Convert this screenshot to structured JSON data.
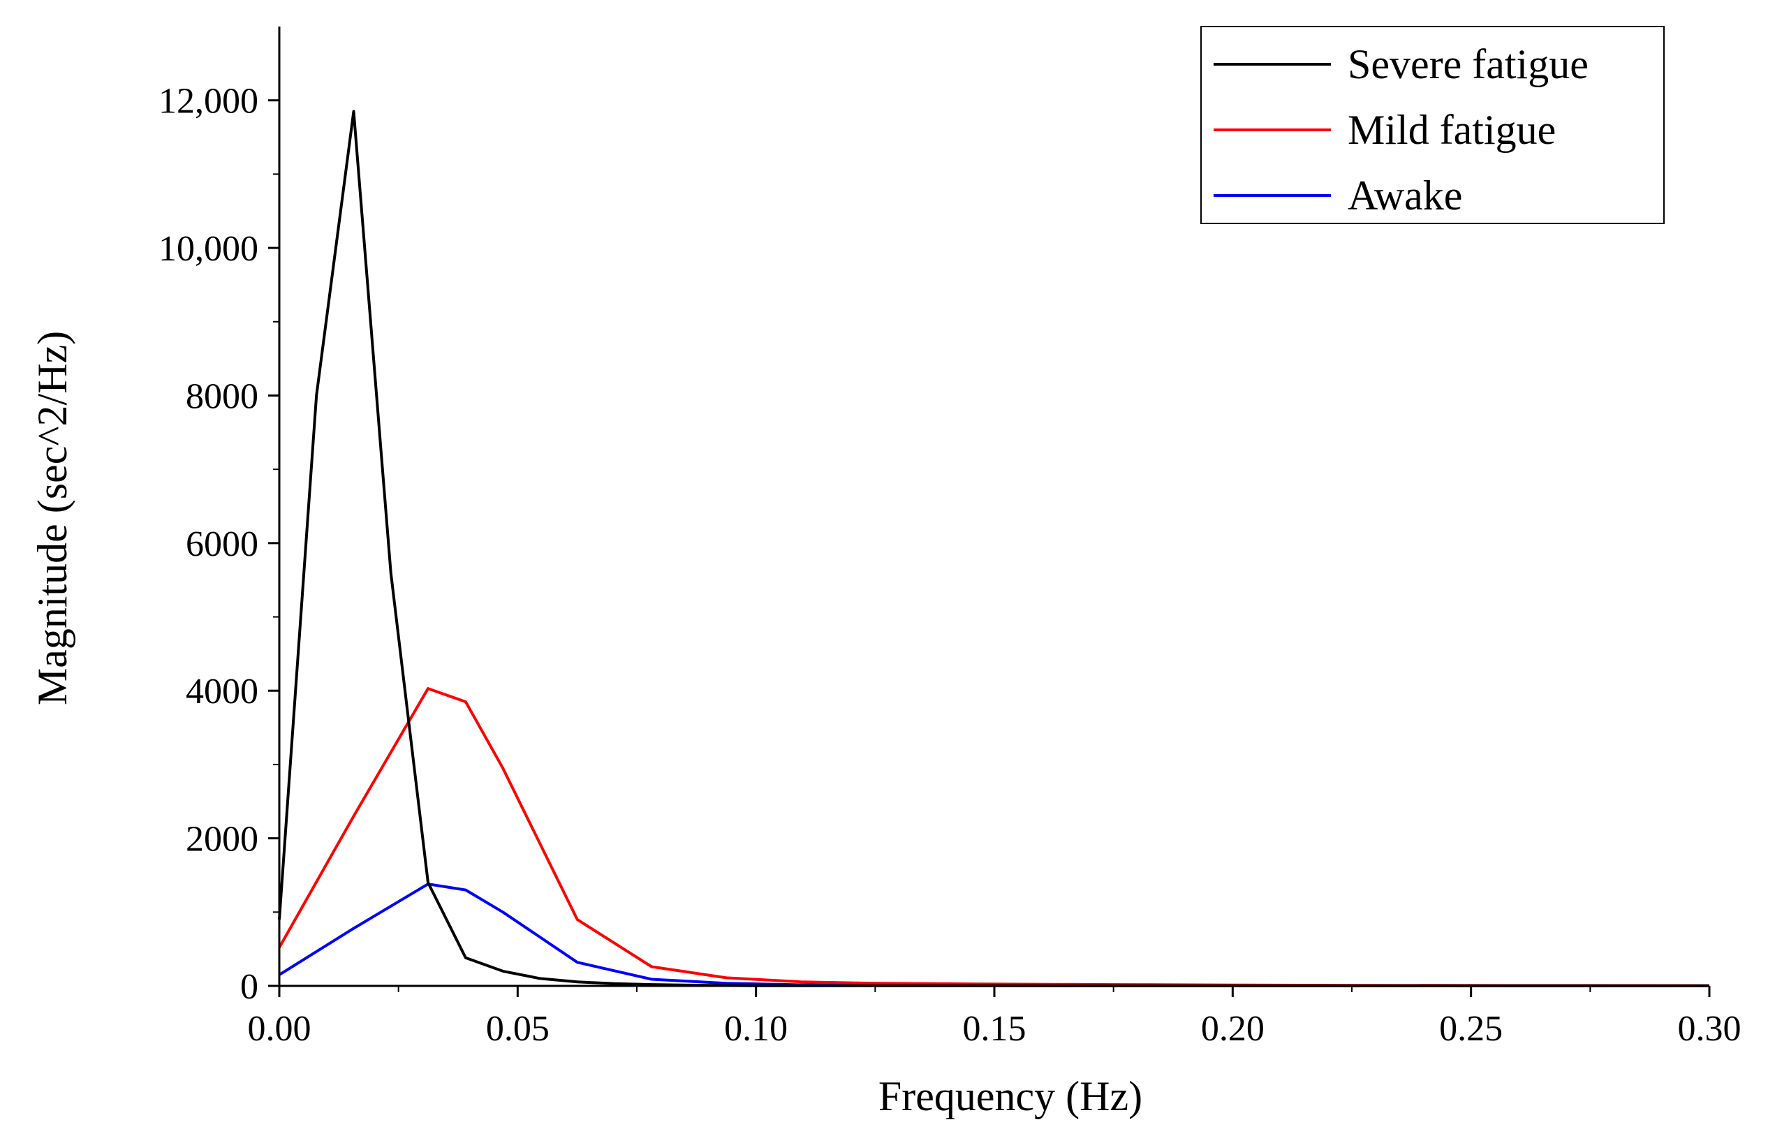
{
  "chart_data": {
    "type": "line",
    "title": "",
    "xlabel": "Frequency (Hz)",
    "ylabel": "Magnitude (sec^2/Hz)",
    "xlim": [
      0,
      0.3
    ],
    "ylim": [
      0,
      13000
    ],
    "x_ticks": [
      0.0,
      0.05,
      0.1,
      0.15,
      0.2,
      0.25,
      0.3
    ],
    "x_tick_labels": [
      "0.00",
      "0.05",
      "0.10",
      "0.15",
      "0.20",
      "0.25",
      "0.30"
    ],
    "y_ticks": [
      0,
      2000,
      4000,
      6000,
      8000,
      10000,
      12000
    ],
    "y_tick_labels": [
      "0",
      "2000",
      "4000",
      "6000",
      "8000",
      "10,000",
      "12,000"
    ],
    "grid": false,
    "legend_position": "top-right",
    "series": [
      {
        "name": "Severe fatigue",
        "color": "#000000",
        "points": [
          [
            0.0,
            900
          ],
          [
            0.0078,
            8000
          ],
          [
            0.0156,
            11850
          ],
          [
            0.0234,
            5600
          ],
          [
            0.0312,
            1400
          ],
          [
            0.0391,
            380
          ],
          [
            0.0469,
            200
          ],
          [
            0.0547,
            100
          ],
          [
            0.0625,
            55
          ],
          [
            0.0703,
            30
          ],
          [
            0.0781,
            18
          ],
          [
            0.0859,
            10
          ],
          [
            0.0938,
            5
          ],
          [
            0.1,
            3
          ],
          [
            0.15,
            2
          ],
          [
            0.2,
            1
          ],
          [
            0.25,
            1
          ],
          [
            0.3,
            1
          ]
        ]
      },
      {
        "name": "Mild fatigue",
        "color": "#ff0000",
        "points": [
          [
            0.0,
            520
          ],
          [
            0.0156,
            2300
          ],
          [
            0.0312,
            4030
          ],
          [
            0.0391,
            3850
          ],
          [
            0.0469,
            2950
          ],
          [
            0.0625,
            900
          ],
          [
            0.0781,
            260
          ],
          [
            0.0938,
            110
          ],
          [
            0.1094,
            55
          ],
          [
            0.125,
            35
          ],
          [
            0.15,
            25
          ],
          [
            0.175,
            18
          ],
          [
            0.2,
            12
          ],
          [
            0.225,
            8
          ],
          [
            0.25,
            6
          ],
          [
            0.3,
            3
          ]
        ]
      },
      {
        "name": "Awake",
        "color": "#0000ff",
        "points": [
          [
            0.0,
            150
          ],
          [
            0.0156,
            780
          ],
          [
            0.0312,
            1380
          ],
          [
            0.0391,
            1300
          ],
          [
            0.0469,
            1000
          ],
          [
            0.0625,
            320
          ],
          [
            0.0781,
            90
          ],
          [
            0.0938,
            35
          ],
          [
            0.1094,
            15
          ],
          [
            0.125,
            8
          ],
          [
            0.15,
            5
          ],
          [
            0.2,
            3
          ],
          [
            0.25,
            2
          ],
          [
            0.3,
            1
          ]
        ]
      }
    ]
  }
}
